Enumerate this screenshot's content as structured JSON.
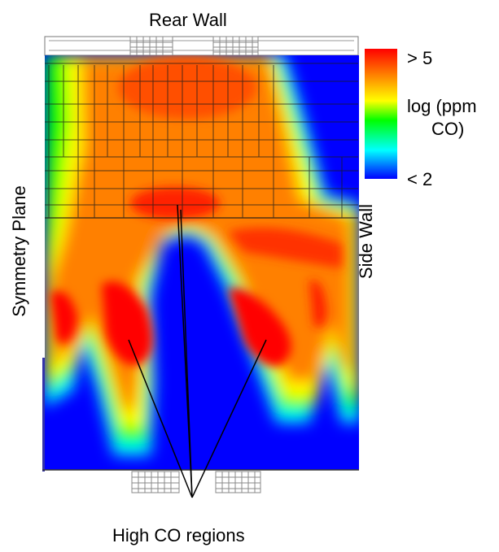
{
  "labels": {
    "top": "Rear Wall",
    "left": "Symmetry Plane",
    "right": "Side Wall",
    "bottom": "High CO regions"
  },
  "colorbar": {
    "max_label": "> 5",
    "title_line1": "log (ppm",
    "title_line2": "CO)",
    "min_label": "< 2",
    "colors": [
      "#ff0000",
      "#ff8000",
      "#ffff00",
      "#00ff00",
      "#00ffff",
      "#0000ff"
    ]
  },
  "field_colors": {
    "background": "#0000ff",
    "hot": "#ff0000"
  }
}
